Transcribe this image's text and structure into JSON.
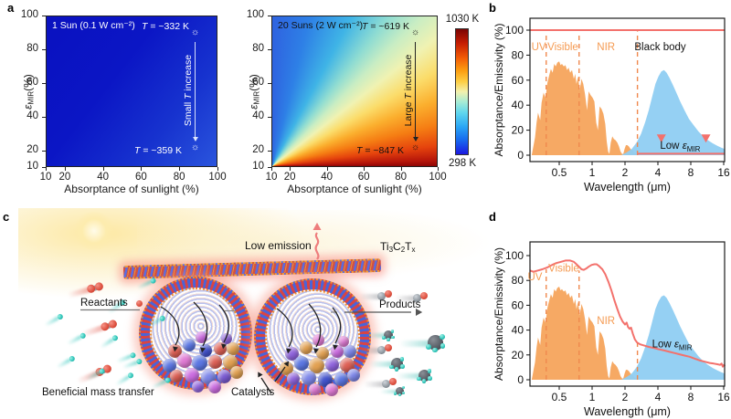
{
  "figure": {
    "panel_labels": {
      "a": "a",
      "b": "b",
      "c": "c",
      "d": "d"
    }
  },
  "colors": {
    "solar_fill": "#F5A45C",
    "blackbody_fill": "#8FCEF2",
    "red_line": "#F3716C",
    "dashed_orange": "#F0894E",
    "region_label_orange": "#F59B53",
    "frame_black": "#1a1a1a",
    "heat_cold_blue": "#1b18e0",
    "heat_hot_red": "#7a0403",
    "map1_dark_blue": "#0a11c0",
    "map1_light_blue": "#2a55dd"
  },
  "panel_c": {
    "low_emission": "Low emission",
    "material": {
      "t1": "Ti",
      "s1": "3",
      "t2": "C",
      "s2": "2",
      "t3": "T",
      "s3": "x"
    },
    "reactants": "Reactants",
    "products": "Products",
    "mass_transfer": "Beneficial mass transfer",
    "catalysts": "Catalysts"
  },
  "chart_data": [
    {
      "id": "heatmap-1sun",
      "type": "heatmap",
      "condition": "1 Sun (0.1 W cm⁻²)",
      "xlabel": "Absorptance of sunlight (%)",
      "ylabel": {
        "sym": "ε",
        "sub": "MIR",
        "rest": "(%)"
      },
      "xlim": [
        10,
        100
      ],
      "ylim": [
        10,
        100
      ],
      "xticks": [
        10,
        20,
        40,
        60,
        80,
        100
      ],
      "yticks": [
        100,
        80,
        60,
        40,
        20,
        10
      ],
      "temp_range_K": [
        298,
        1030
      ],
      "points": [
        {
          "absorptance": 88,
          "emissivity": 90,
          "label_pre": "T",
          "label_rest": " = ~332 K"
        },
        {
          "absorptance": 88,
          "emissivity": 22,
          "label_pre": "T",
          "label_rest": " = ~359 K"
        }
      ],
      "arrow": {
        "pre": "Small ",
        "it": "T",
        "post": " increase"
      }
    },
    {
      "id": "heatmap-20suns",
      "type": "heatmap",
      "condition": "20 Suns (2 W cm⁻²)",
      "xlabel": "Absorptance of sunlight (%)",
      "ylabel": {
        "sym": "ε",
        "sub": "MIR",
        "rest": "(%)"
      },
      "xlim": [
        10,
        100
      ],
      "ylim": [
        10,
        100
      ],
      "xticks": [
        10,
        20,
        40,
        60,
        80,
        100
      ],
      "yticks": [
        100,
        80,
        60,
        40,
        20,
        10
      ],
      "temp_range_K": [
        298,
        1030
      ],
      "points": [
        {
          "absorptance": 88,
          "emissivity": 90,
          "label_pre": "T",
          "label_rest": " = ~619 K"
        },
        {
          "absorptance": 88,
          "emissivity": 22,
          "label_pre": "T",
          "label_rest": " = ~847 K"
        }
      ],
      "arrow": {
        "pre": "Large ",
        "it": "T",
        "post": " increase"
      },
      "colorbar": {
        "top": "1030 K",
        "bottom": "298 K"
      }
    },
    {
      "id": "spectra-ideal",
      "type": "area",
      "xlabel": "Wavelength (μm)",
      "ylabel": "Absorptance/Emissivity (%)",
      "xscale": "log",
      "xlim": [
        0.27,
        16.45
      ],
      "ylim": [
        0,
        100
      ],
      "xticks": [
        "0.5",
        "1",
        "2",
        "4",
        "8",
        "16"
      ],
      "yticks": [
        "0",
        "20",
        "40",
        "60",
        "80",
        "100"
      ],
      "dashed_lines": [
        {
          "x": 0.38,
          "top": 97
        },
        {
          "x": 0.76,
          "top": 97
        },
        {
          "x": 2.6,
          "top": 99
        }
      ],
      "region_labels": [
        {
          "text": "UV",
          "x": 0.325,
          "y": 84,
          "color": "orange"
        },
        {
          "text": "Visible",
          "x": 0.54,
          "y": 84,
          "color": "orange"
        },
        {
          "text": "NIR",
          "x": 1.34,
          "y": 84,
          "color": "orange"
        },
        {
          "text": "Black body",
          "x": 4.2,
          "y": 84,
          "color": "black"
        }
      ],
      "low_label": {
        "pre": "Low ",
        "sym": "ε",
        "sub": "MIR",
        "x": 6.4,
        "y": 5
      },
      "down_arrows": [
        {
          "x": 4.3,
          "y_from": 64,
          "y_to": 13
        },
        {
          "x": 11,
          "y_from": 57,
          "y_to": 13
        }
      ],
      "lines": [
        {
          "name": "ideal-absorptance-100",
          "points": [
            [
              0.27,
              100
            ],
            [
              16.45,
              100
            ]
          ]
        },
        {
          "name": "low-mir-emissivity",
          "points": [
            [
              2.6,
              1.2
            ],
            [
              16.45,
              1.2
            ]
          ]
        }
      ],
      "solar_spectrum": [
        [
          0.28,
          0
        ],
        [
          0.3,
          14
        ],
        [
          0.31,
          26
        ],
        [
          0.32,
          34
        ],
        [
          0.335,
          28
        ],
        [
          0.345,
          42
        ],
        [
          0.36,
          50
        ],
        [
          0.375,
          46
        ],
        [
          0.39,
          58
        ],
        [
          0.405,
          64
        ],
        [
          0.42,
          69
        ],
        [
          0.435,
          66
        ],
        [
          0.45,
          73
        ],
        [
          0.465,
          71
        ],
        [
          0.48,
          74
        ],
        [
          0.5,
          75
        ],
        [
          0.515,
          72
        ],
        [
          0.53,
          73
        ],
        [
          0.55,
          71
        ],
        [
          0.57,
          72
        ],
        [
          0.59,
          68
        ],
        [
          0.61,
          70
        ],
        [
          0.63,
          66
        ],
        [
          0.655,
          68
        ],
        [
          0.68,
          61
        ],
        [
          0.7,
          65
        ],
        [
          0.72,
          57
        ],
        [
          0.745,
          63
        ],
        [
          0.77,
          52
        ],
        [
          0.8,
          61
        ],
        [
          0.83,
          57
        ],
        [
          0.86,
          49
        ],
        [
          0.9,
          36
        ],
        [
          0.93,
          51
        ],
        [
          0.97,
          48
        ],
        [
          1.01,
          46
        ],
        [
          1.05,
          43
        ],
        [
          1.09,
          26
        ],
        [
          1.13,
          20
        ],
        [
          1.17,
          39
        ],
        [
          1.22,
          37
        ],
        [
          1.27,
          33
        ],
        [
          1.32,
          25
        ],
        [
          1.36,
          11
        ],
        [
          1.4,
          3
        ],
        [
          1.44,
          1
        ],
        [
          1.48,
          10
        ],
        [
          1.53,
          15
        ],
        [
          1.58,
          13
        ],
        [
          1.64,
          12
        ],
        [
          1.7,
          10
        ],
        [
          1.76,
          7
        ],
        [
          1.82,
          3
        ],
        [
          1.88,
          1
        ],
        [
          1.93,
          1
        ],
        [
          1.98,
          5
        ],
        [
          2.04,
          8
        ],
        [
          2.1,
          8
        ],
        [
          2.17,
          7
        ],
        [
          2.25,
          5
        ],
        [
          2.34,
          4
        ],
        [
          2.43,
          2
        ],
        [
          2.52,
          1
        ],
        [
          2.6,
          0
        ]
      ],
      "blackbody": [
        [
          1.85,
          0
        ],
        [
          2.05,
          2
        ],
        [
          2.3,
          5
        ],
        [
          2.55,
          10
        ],
        [
          2.8,
          17
        ],
        [
          3.05,
          26
        ],
        [
          3.3,
          36
        ],
        [
          3.55,
          47
        ],
        [
          3.8,
          57
        ],
        [
          4.05,
          63
        ],
        [
          4.3,
          67
        ],
        [
          4.55,
          68
        ],
        [
          4.8,
          66
        ],
        [
          5.1,
          62
        ],
        [
          5.5,
          56
        ],
        [
          5.9,
          50
        ],
        [
          6.4,
          43
        ],
        [
          7.0,
          36
        ],
        [
          7.7,
          29
        ],
        [
          8.5,
          24
        ],
        [
          9.4,
          19
        ],
        [
          10.4,
          15
        ],
        [
          11.5,
          12
        ],
        [
          12.7,
          9.5
        ],
        [
          14,
          7.5
        ],
        [
          15.2,
          6
        ],
        [
          16.4,
          5
        ]
      ]
    },
    {
      "id": "spectra-measured",
      "type": "area",
      "xlabel": "Wavelength (μm)",
      "ylabel": "Absorptance/Emissivity (%)",
      "xscale": "log",
      "xlim": [
        0.27,
        16.45
      ],
      "ylim": [
        0,
        100
      ],
      "xticks": [
        "0.5",
        "1",
        "2",
        "4",
        "8",
        "16"
      ],
      "yticks": [
        "0",
        "20",
        "40",
        "60",
        "80",
        "100"
      ],
      "dashed_lines": [
        {
          "x": 0.38,
          "top": 89
        },
        {
          "x": 0.76,
          "top": 88
        },
        {
          "x": 2.6,
          "top": 30
        }
      ],
      "region_labels": [
        {
          "text": "UV",
          "x": 0.3,
          "y": 80,
          "color": "orange"
        },
        {
          "text": "Visible",
          "x": 0.55,
          "y": 87,
          "color": "orange"
        },
        {
          "text": "NIR",
          "x": 1.34,
          "y": 45,
          "color": "orange"
        }
      ],
      "low_label": {
        "pre": "Low ",
        "sym": "ε",
        "sub": "MIR",
        "x": 5.4,
        "y": 26
      },
      "lines": [
        {
          "name": "measured-absorptance-emissivity",
          "points": [
            [
              0.27,
              88
            ],
            [
              0.29,
              87
            ],
            [
              0.32,
              88
            ],
            [
              0.35,
              89
            ],
            [
              0.39,
              90.5
            ],
            [
              0.43,
              92.5
            ],
            [
              0.47,
              94
            ],
            [
              0.52,
              95
            ],
            [
              0.57,
              96
            ],
            [
              0.63,
              96
            ],
            [
              0.68,
              95
            ],
            [
              0.72,
              93
            ],
            [
              0.76,
              91
            ],
            [
              0.8,
              89
            ],
            [
              0.84,
              88.5
            ],
            [
              0.88,
              89.5
            ],
            [
              0.93,
              91
            ],
            [
              0.99,
              92.5
            ],
            [
              1.05,
              93
            ],
            [
              1.1,
              93
            ],
            [
              1.16,
              91.5
            ],
            [
              1.24,
              89
            ],
            [
              1.32,
              85
            ],
            [
              1.41,
              79
            ],
            [
              1.5,
              72
            ],
            [
              1.6,
              64
            ],
            [
              1.7,
              57
            ],
            [
              1.8,
              51
            ],
            [
              1.9,
              47
            ],
            [
              2.0,
              44.5
            ],
            [
              2.07,
              46
            ],
            [
              2.13,
              42.5
            ],
            [
              2.2,
              41
            ],
            [
              2.27,
              42
            ],
            [
              2.36,
              37
            ],
            [
              2.46,
              32.5
            ],
            [
              2.58,
              30
            ],
            [
              2.75,
              28.5
            ],
            [
              3.0,
              27.5
            ],
            [
              3.3,
              26.5
            ],
            [
              3.7,
              25.5
            ],
            [
              4.1,
              24.5
            ],
            [
              4.6,
              23.5
            ],
            [
              5.1,
              22.5
            ],
            [
              5.7,
              21.5
            ],
            [
              6.3,
              20.5
            ],
            [
              7.0,
              19.5
            ],
            [
              7.8,
              18.5
            ],
            [
              8.7,
              17
            ],
            [
              9.7,
              15.5
            ],
            [
              10.8,
              14.5
            ],
            [
              11.9,
              13.5
            ],
            [
              13.0,
              13
            ],
            [
              14.0,
              12.5
            ],
            [
              14.8,
              12
            ],
            [
              15.3,
              13
            ],
            [
              15.7,
              10.5
            ],
            [
              16.1,
              12
            ],
            [
              16.4,
              11
            ]
          ]
        }
      ],
      "solar_spectrum": [
        [
          0.28,
          0
        ],
        [
          0.3,
          14
        ],
        [
          0.31,
          26
        ],
        [
          0.32,
          34
        ],
        [
          0.335,
          28
        ],
        [
          0.345,
          42
        ],
        [
          0.36,
          50
        ],
        [
          0.375,
          46
        ],
        [
          0.39,
          58
        ],
        [
          0.405,
          64
        ],
        [
          0.42,
          69
        ],
        [
          0.435,
          66
        ],
        [
          0.45,
          73
        ],
        [
          0.465,
          71
        ],
        [
          0.48,
          74
        ],
        [
          0.5,
          75
        ],
        [
          0.515,
          72
        ],
        [
          0.53,
          73
        ],
        [
          0.55,
          71
        ],
        [
          0.57,
          72
        ],
        [
          0.59,
          68
        ],
        [
          0.61,
          70
        ],
        [
          0.63,
          66
        ],
        [
          0.655,
          68
        ],
        [
          0.68,
          61
        ],
        [
          0.7,
          65
        ],
        [
          0.72,
          57
        ],
        [
          0.745,
          63
        ],
        [
          0.77,
          52
        ],
        [
          0.8,
          61
        ],
        [
          0.83,
          57
        ],
        [
          0.86,
          49
        ],
        [
          0.9,
          36
        ],
        [
          0.93,
          51
        ],
        [
          0.97,
          48
        ],
        [
          1.01,
          46
        ],
        [
          1.05,
          43
        ],
        [
          1.09,
          26
        ],
        [
          1.13,
          20
        ],
        [
          1.17,
          39
        ],
        [
          1.22,
          37
        ],
        [
          1.27,
          33
        ],
        [
          1.32,
          25
        ],
        [
          1.36,
          11
        ],
        [
          1.4,
          3
        ],
        [
          1.44,
          1
        ],
        [
          1.48,
          10
        ],
        [
          1.53,
          15
        ],
        [
          1.58,
          13
        ],
        [
          1.64,
          12
        ],
        [
          1.7,
          10
        ],
        [
          1.76,
          7
        ],
        [
          1.82,
          3
        ],
        [
          1.88,
          1
        ],
        [
          1.93,
          1
        ],
        [
          1.98,
          5
        ],
        [
          2.04,
          8
        ],
        [
          2.1,
          8
        ],
        [
          2.17,
          7
        ],
        [
          2.25,
          5
        ],
        [
          2.34,
          4
        ],
        [
          2.43,
          2
        ],
        [
          2.52,
          1
        ],
        [
          2.6,
          0
        ]
      ],
      "blackbody": [
        [
          1.85,
          0
        ],
        [
          2.05,
          2
        ],
        [
          2.3,
          5
        ],
        [
          2.55,
          10
        ],
        [
          2.8,
          17
        ],
        [
          3.05,
          26
        ],
        [
          3.3,
          36
        ],
        [
          3.55,
          47
        ],
        [
          3.8,
          57
        ],
        [
          4.05,
          63
        ],
        [
          4.3,
          67
        ],
        [
          4.55,
          68
        ],
        [
          4.8,
          66
        ],
        [
          5.1,
          62
        ],
        [
          5.5,
          56
        ],
        [
          5.9,
          50
        ],
        [
          6.4,
          43
        ],
        [
          7.0,
          36
        ],
        [
          7.7,
          29
        ],
        [
          8.5,
          24
        ],
        [
          9.4,
          19
        ],
        [
          10.4,
          15
        ],
        [
          11.5,
          12
        ],
        [
          12.7,
          9.5
        ],
        [
          14,
          7.5
        ],
        [
          15.2,
          6
        ],
        [
          16.4,
          5
        ]
      ]
    }
  ]
}
